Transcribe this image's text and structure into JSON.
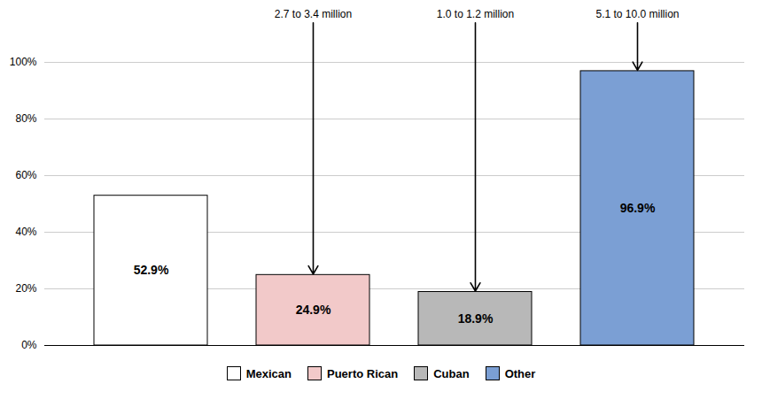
{
  "chart_data": {
    "type": "bar",
    "categories": [
      "Mexican",
      "Puerto Rican",
      "Cuban",
      "Other"
    ],
    "values": [
      52.9,
      24.9,
      18.9,
      96.9
    ],
    "value_labels": [
      "52.9%",
      "24.9%",
      "18.9%",
      "96.9%"
    ],
    "data_labels": true,
    "colors": [
      "#ffffff",
      "#f2c9c9",
      "#b8b8b8",
      "#7b9fd4"
    ],
    "ylim": [
      0,
      100
    ],
    "yticks": [
      {
        "value": 0,
        "label": "0%"
      },
      {
        "value": 20,
        "label": "20%"
      },
      {
        "value": 40,
        "label": "40%"
      },
      {
        "value": 60,
        "label": "60%"
      },
      {
        "value": 80,
        "label": "80%"
      },
      {
        "value": 100,
        "label": "100%"
      }
    ],
    "grid": true,
    "tick_labels": "y",
    "legend": "bottom",
    "annotations": [
      {
        "text": "2.7 to 3.4 million",
        "category": "Puerto Rican"
      },
      {
        "text": "1.0 to 1.2 million",
        "category": "Cuban"
      },
      {
        "text": "5.1 to 10.0 million",
        "category": "Other"
      }
    ]
  }
}
